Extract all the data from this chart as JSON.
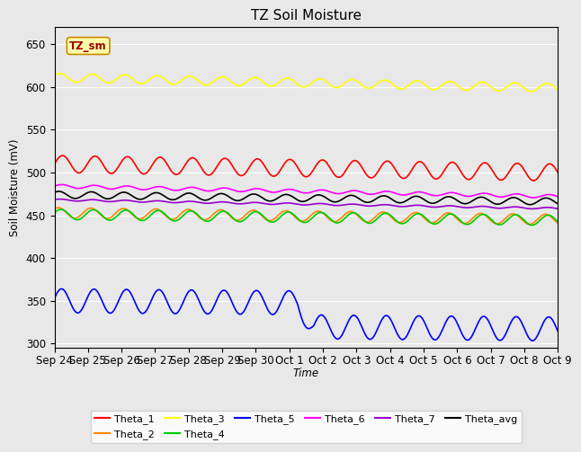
{
  "title": "TZ Soil Moisture",
  "xlabel": "Time",
  "ylabel": "Soil Moisture (mV)",
  "ylim": [
    295,
    670
  ],
  "yticks": [
    300,
    350,
    400,
    450,
    500,
    550,
    600,
    650
  ],
  "num_days": 15.5,
  "num_points": 500,
  "background_color": "#e8e8e8",
  "fig_facecolor": "#e8e8e8",
  "lines": {
    "Theta_1": {
      "color": "#ff0000",
      "base": 510,
      "amplitude": 10,
      "freq_mult": 1.0,
      "trend": -10,
      "phase": 0.0
    },
    "Theta_2": {
      "color": "#ff8800",
      "base": 453,
      "amplitude": 6,
      "freq_mult": 1.0,
      "trend": -8,
      "phase": 0.8
    },
    "Theta_3": {
      "color": "#ffff00",
      "base": 611,
      "amplitude": 5,
      "freq_mult": 1.0,
      "trend": -12,
      "phase": 0.5
    },
    "Theta_4": {
      "color": "#00cc00",
      "base": 451,
      "amplitude": 6,
      "freq_mult": 1.0,
      "trend": -7,
      "phase": 0.3
    },
    "Theta_5": {
      "color": "#0000ff",
      "base": 350,
      "amplitude": 14,
      "freq_mult": 1.0,
      "trend": -5,
      "phase": 0.2,
      "step_day": 7.5,
      "step_amount": -28
    },
    "Theta_6": {
      "color": "#ff00ff",
      "base": 484,
      "amplitude": 2,
      "freq_mult": 1.0,
      "trend": -12,
      "phase": 0.1
    },
    "Theta_7": {
      "color": "#9900cc",
      "base": 468,
      "amplitude": 1,
      "freq_mult": 1.0,
      "trend": -10,
      "phase": 0.4
    },
    "Theta_avg": {
      "color": "#000000",
      "base": 474,
      "amplitude": 4,
      "freq_mult": 1.0,
      "trend": -8,
      "phase": 0.7
    }
  },
  "xtick_labels": [
    "Sep 24",
    "Sep 25",
    "Sep 26",
    "Sep 27",
    "Sep 28",
    "Sep 29",
    "Sep 30",
    "Oct 1",
    "Oct 2",
    "Oct 3",
    "Oct 4",
    "Oct 5",
    "Oct 6",
    "Oct 7",
    "Oct 8",
    "Oct 9"
  ],
  "legend_order": [
    "Theta_1",
    "Theta_2",
    "Theta_3",
    "Theta_4",
    "Theta_5",
    "Theta_6",
    "Theta_7",
    "Theta_avg"
  ],
  "legend_box_label": "TZ_sm",
  "legend_box_facecolor": "#ffffaa",
  "legend_box_edgecolor": "#cc8800"
}
